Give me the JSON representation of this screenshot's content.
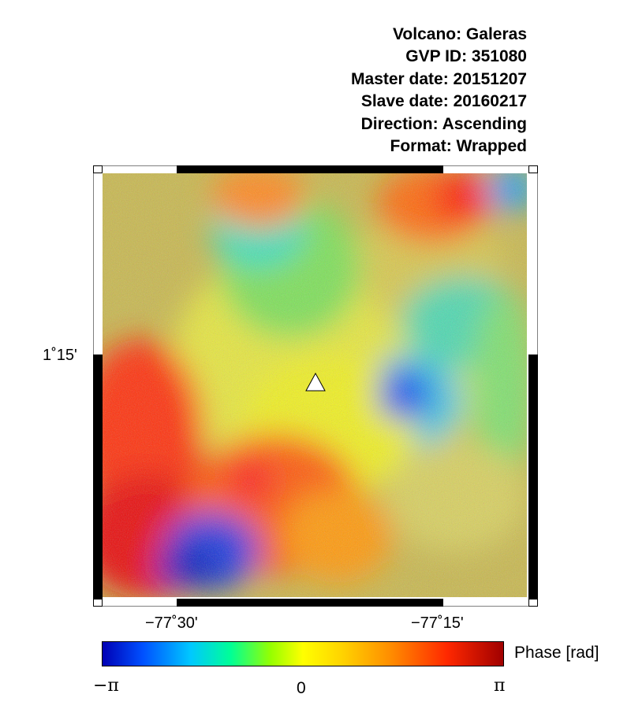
{
  "info": {
    "volcano": "Volcano: Galeras",
    "gvp_id": "GVP ID: 351080",
    "master_date": "Master date: 20151207",
    "slave_date": "Slave date: 20160217",
    "direction": "Direction: Ascending",
    "format": "Format: Wrapped"
  },
  "map": {
    "lat_tick": "1˚15'",
    "lon_ticks": [
      "−77˚30'",
      "−77˚15'"
    ],
    "marker": "volcano-triangle"
  },
  "colorbar": {
    "label": "Phase [rad]",
    "tick_min": "−π",
    "tick_mid": "0",
    "tick_max": "π"
  },
  "colors": {
    "blue": "#0000ff",
    "cyan": "#00ffff",
    "green": "#00ff00",
    "yellow": "#ffff00",
    "orange": "#ff8c00",
    "red": "#ff0000",
    "dark_red": "#a00000"
  }
}
